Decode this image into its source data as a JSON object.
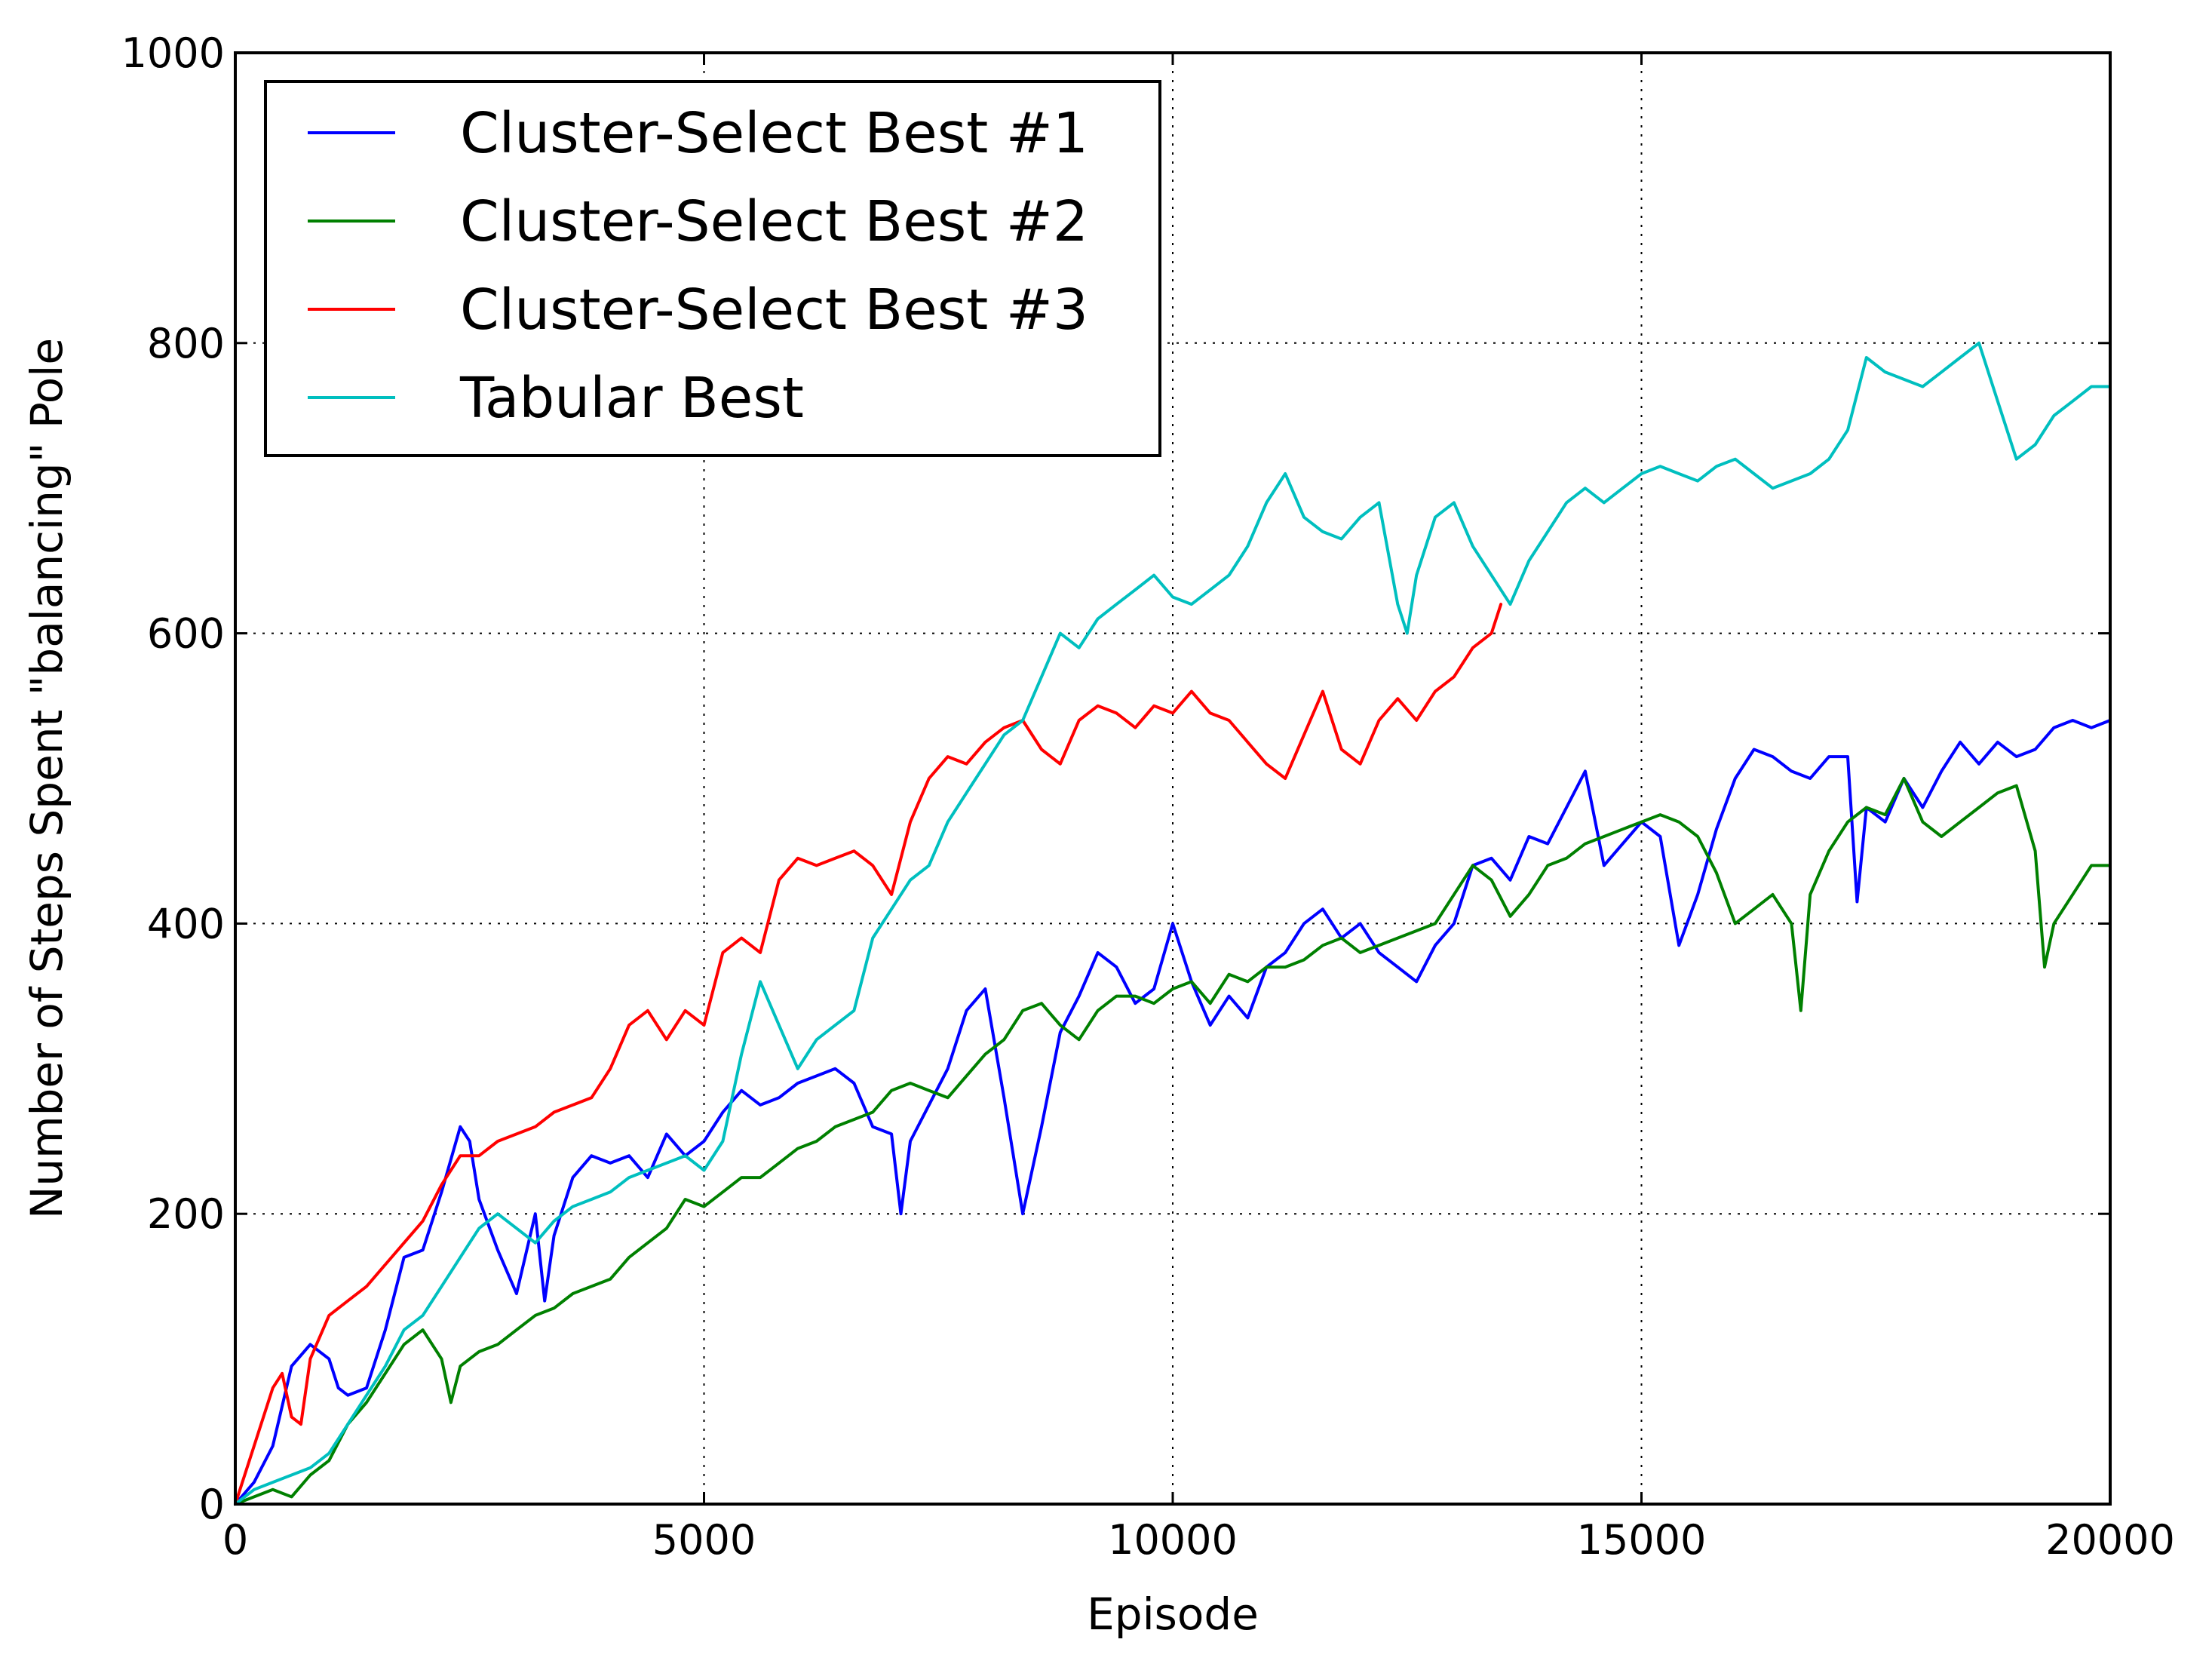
{
  "chart_data": {
    "type": "line",
    "title": "",
    "xlabel": "Episode",
    "ylabel": "Number of Steps Spent \"balancing\" Pole",
    "xlim": [
      0,
      20000
    ],
    "ylim": [
      0,
      1000
    ],
    "xticks": [
      0,
      5000,
      10000,
      15000,
      20000
    ],
    "yticks": [
      0,
      200,
      400,
      600,
      800,
      1000
    ],
    "grid": true,
    "legend_position": "top-left",
    "series": [
      {
        "name": "Cluster-Select Best #1",
        "color": "#0000ff",
        "x": [
          0,
          200,
          400,
          600,
          800,
          1000,
          1100,
          1200,
          1400,
          1600,
          1800,
          2000,
          2200,
          2400,
          2500,
          2600,
          2800,
          3000,
          3200,
          3300,
          3400,
          3600,
          3800,
          4000,
          4200,
          4400,
          4600,
          4800,
          5000,
          5200,
          5400,
          5600,
          5800,
          6000,
          6200,
          6400,
          6600,
          6800,
          7000,
          7100,
          7200,
          7400,
          7600,
          7800,
          8000,
          8200,
          8400,
          8600,
          8800,
          9000,
          9200,
          9400,
          9600,
          9800,
          10000,
          10200,
          10400,
          10600,
          10800,
          11000,
          11200,
          11400,
          11600,
          11800,
          12000,
          12200,
          12400,
          12600,
          12800,
          13000,
          13200,
          13400,
          13600,
          13800,
          14000,
          14200,
          14400,
          14600,
          14800,
          15000,
          15200,
          15400,
          15600,
          15800,
          16000,
          16200,
          16400,
          16600,
          16800,
          17000,
          17200,
          17300,
          17400,
          17600,
          17800,
          18000,
          18200,
          18400,
          18600,
          18800,
          19000,
          19200,
          19400,
          19600,
          19800,
          20000
        ],
        "values": [
          0,
          15,
          40,
          95,
          110,
          100,
          80,
          75,
          80,
          120,
          170,
          175,
          215,
          260,
          250,
          210,
          175,
          145,
          200,
          140,
          185,
          225,
          240,
          235,
          240,
          225,
          255,
          240,
          250,
          270,
          285,
          275,
          280,
          290,
          295,
          300,
          290,
          260,
          255,
          200,
          250,
          275,
          300,
          340,
          355,
          280,
          200,
          260,
          325,
          350,
          380,
          370,
          345,
          355,
          400,
          360,
          330,
          350,
          335,
          370,
          380,
          400,
          410,
          390,
          400,
          380,
          370,
          360,
          385,
          400,
          440,
          445,
          430,
          460,
          455,
          480,
          505,
          440,
          455,
          470,
          460,
          385,
          420,
          465,
          500,
          520,
          515,
          505,
          500,
          515,
          515,
          415,
          480,
          470,
          500,
          480,
          505,
          525,
          510,
          525,
          515,
          520,
          535,
          540,
          535,
          540
        ]
      },
      {
        "name": "Cluster-Select Best #2",
        "color": "#008000",
        "x": [
          0,
          200,
          400,
          600,
          800,
          1000,
          1200,
          1400,
          1600,
          1800,
          2000,
          2200,
          2300,
          2400,
          2600,
          2800,
          3000,
          3200,
          3400,
          3600,
          3800,
          4000,
          4200,
          4400,
          4600,
          4800,
          5000,
          5200,
          5400,
          5600,
          5800,
          6000,
          6200,
          6400,
          6600,
          6800,
          7000,
          7200,
          7400,
          7600,
          7800,
          8000,
          8200,
          8400,
          8600,
          8800,
          9000,
          9200,
          9400,
          9600,
          9800,
          10000,
          10200,
          10400,
          10600,
          10800,
          11000,
          11200,
          11400,
          11600,
          11800,
          12000,
          12200,
          12400,
          12600,
          12800,
          13000,
          13200,
          13400,
          13600,
          13800,
          14000,
          14200,
          14400,
          14600,
          14800,
          15000,
          15200,
          15400,
          15600,
          15800,
          16000,
          16200,
          16400,
          16600,
          16700,
          16800,
          17000,
          17200,
          17400,
          17600,
          17800,
          18000,
          18200,
          18400,
          18600,
          18800,
          19000,
          19200,
          19300,
          19400,
          19600,
          19800,
          20000
        ],
        "values": [
          0,
          5,
          10,
          5,
          20,
          30,
          55,
          70,
          90,
          110,
          120,
          100,
          70,
          95,
          105,
          110,
          120,
          130,
          135,
          145,
          150,
          155,
          170,
          180,
          190,
          210,
          205,
          215,
          225,
          225,
          235,
          245,
          250,
          260,
          265,
          270,
          285,
          290,
          285,
          280,
          295,
          310,
          320,
          340,
          345,
          330,
          320,
          340,
          350,
          350,
          345,
          355,
          360,
          345,
          365,
          360,
          370,
          370,
          375,
          385,
          390,
          380,
          385,
          390,
          395,
          400,
          420,
          440,
          430,
          405,
          420,
          440,
          445,
          455,
          460,
          465,
          470,
          475,
          470,
          460,
          435,
          400,
          410,
          420,
          400,
          340,
          420,
          450,
          470,
          480,
          475,
          500,
          470,
          460,
          470,
          480,
          490,
          495,
          450,
          370,
          400,
          420,
          440,
          440
        ]
      },
      {
        "name": "Cluster-Select Best #3",
        "color": "#ff0000",
        "x": [
          0,
          200,
          400,
          500,
          600,
          700,
          800,
          1000,
          1200,
          1400,
          1600,
          1800,
          2000,
          2200,
          2400,
          2600,
          2800,
          3000,
          3200,
          3400,
          3600,
          3800,
          4000,
          4200,
          4400,
          4600,
          4800,
          5000,
          5200,
          5400,
          5600,
          5800,
          6000,
          6200,
          6400,
          6600,
          6800,
          7000,
          7200,
          7400,
          7600,
          7800,
          8000,
          8200,
          8400,
          8600,
          8800,
          9000,
          9200,
          9400,
          9600,
          9800,
          10000,
          10200,
          10400,
          10600,
          10800,
          11000,
          11200,
          11400,
          11600,
          11800,
          12000,
          12200,
          12400,
          12600,
          12800,
          13000,
          13200,
          13400,
          13500
        ],
        "values": [
          0,
          40,
          80,
          90,
          60,
          55,
          100,
          130,
          140,
          150,
          165,
          180,
          195,
          220,
          240,
          240,
          250,
          255,
          260,
          270,
          275,
          280,
          300,
          330,
          340,
          320,
          340,
          330,
          380,
          390,
          380,
          430,
          445,
          440,
          445,
          450,
          440,
          420,
          470,
          500,
          515,
          510,
          525,
          535,
          540,
          520,
          510,
          540,
          550,
          545,
          535,
          550,
          545,
          560,
          545,
          540,
          525,
          510,
          500,
          530,
          560,
          520,
          510,
          540,
          555,
          540,
          560,
          570,
          590,
          600,
          620
        ]
      },
      {
        "name": "Tabular Best",
        "color": "#00bfbf",
        "x": [
          0,
          200,
          400,
          600,
          800,
          1000,
          1200,
          1400,
          1600,
          1800,
          2000,
          2200,
          2400,
          2600,
          2800,
          3000,
          3200,
          3400,
          3600,
          3800,
          4000,
          4200,
          4400,
          4600,
          4800,
          5000,
          5200,
          5400,
          5600,
          5800,
          6000,
          6200,
          6400,
          6600,
          6800,
          7000,
          7200,
          7400,
          7600,
          7800,
          8000,
          8200,
          8400,
          8600,
          8800,
          9000,
          9200,
          9400,
          9600,
          9800,
          10000,
          10200,
          10400,
          10600,
          10800,
          11000,
          11200,
          11400,
          11600,
          11800,
          12000,
          12200,
          12400,
          12500,
          12600,
          12800,
          13000,
          13200,
          13400,
          13600,
          13800,
          14000,
          14200,
          14400,
          14600,
          14800,
          15000,
          15200,
          15400,
          15600,
          15800,
          16000,
          16200,
          16400,
          16600,
          16800,
          17000,
          17200,
          17400,
          17600,
          17800,
          18000,
          18200,
          18400,
          18600,
          18800,
          19000,
          19200,
          19400,
          19600,
          19800,
          20000
        ],
        "values": [
          0,
          10,
          15,
          20,
          25,
          35,
          55,
          75,
          95,
          120,
          130,
          150,
          170,
          190,
          200,
          190,
          180,
          195,
          205,
          210,
          215,
          225,
          230,
          235,
          240,
          230,
          250,
          310,
          360,
          330,
          300,
          320,
          330,
          340,
          390,
          410,
          430,
          440,
          470,
          490,
          510,
          530,
          540,
          570,
          600,
          590,
          610,
          620,
          630,
          640,
          625,
          620,
          630,
          640,
          660,
          690,
          710,
          680,
          670,
          665,
          680,
          690,
          620,
          600,
          640,
          680,
          690,
          660,
          640,
          620,
          650,
          670,
          690,
          700,
          690,
          700,
          710,
          715,
          710,
          705,
          715,
          720,
          710,
          700,
          705,
          710,
          720,
          740,
          790,
          780,
          775,
          770,
          780,
          790,
          800,
          760,
          720,
          730,
          750,
          760,
          770,
          770
        ]
      }
    ]
  }
}
